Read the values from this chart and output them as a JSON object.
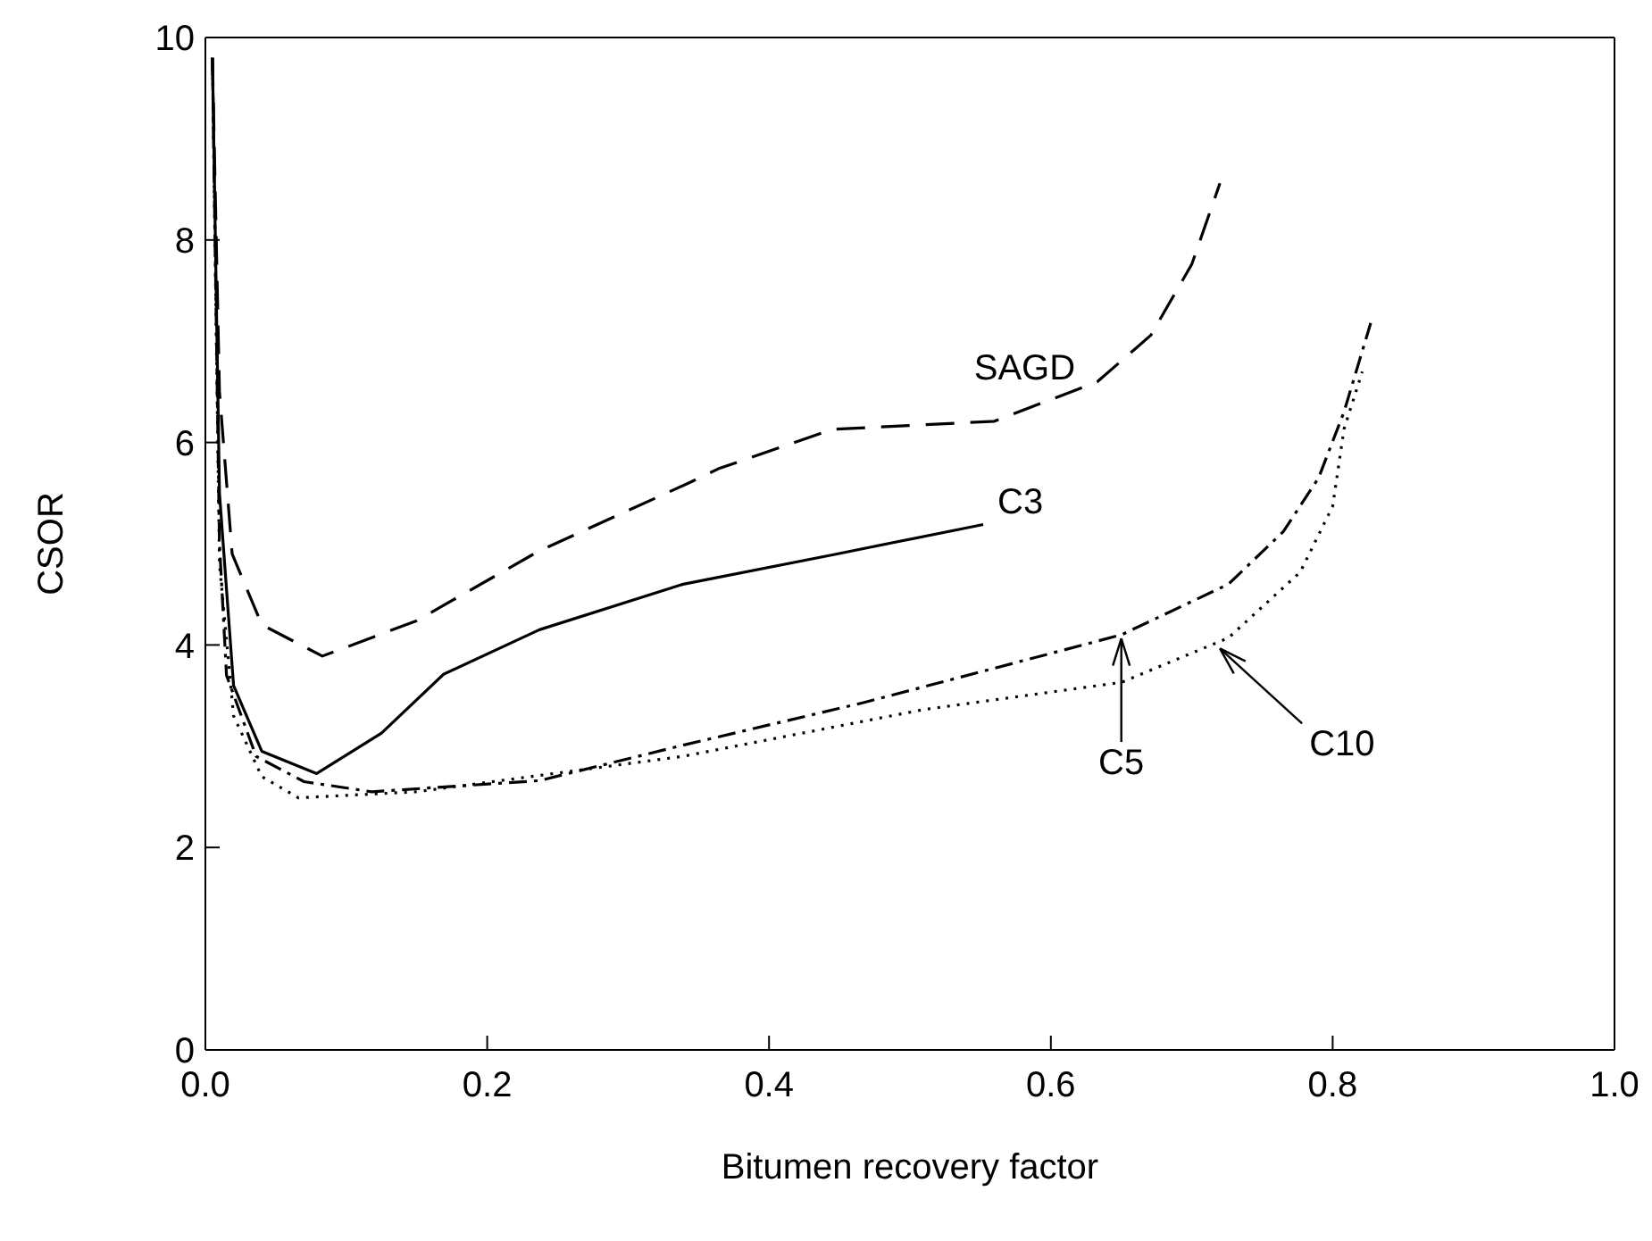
{
  "chart_data": {
    "type": "line",
    "xlabel": "Bitumen recovery factor",
    "ylabel": "CSOR",
    "xlim": [
      0,
      1
    ],
    "xticks": [
      {
        "value": 0,
        "label": "0.0"
      },
      {
        "value": 0.2,
        "label": "0.2"
      },
      {
        "value": 0.4,
        "label": "0.4"
      },
      {
        "value": 0.6,
        "label": "0.6"
      },
      {
        "value": 0.8,
        "label": "0.8"
      },
      {
        "value": 1,
        "label": "1.0"
      }
    ],
    "ylim": [
      0,
      10
    ],
    "yticks": [
      0,
      2,
      4,
      6,
      8,
      10
    ],
    "grid": false,
    "legend": false,
    "marker": "none",
    "series": [
      {
        "color": "#000000",
        "line_style": "dashed",
        "x": [
          0.005,
          0.01,
          0.019,
          0.04,
          0.083,
          0.15,
          0.237,
          0.343,
          0.364,
          0.445,
          0.56,
          0.633,
          0.671,
          0.7,
          0.72
        ],
        "values": [
          9.8,
          6.5,
          4.9,
          4.2,
          3.89,
          4.24,
          4.93,
          5.6,
          5.74,
          6.13,
          6.21,
          6.6,
          7.06,
          7.76,
          8.56
        ]
      },
      {
        "color": "#000000",
        "line_style": "solid",
        "x": [
          0.005,
          0.01,
          0.02,
          0.04,
          0.079,
          0.125,
          0.169,
          0.237,
          0.339,
          0.445,
          0.552
        ],
        "values": [
          9.8,
          5.5,
          3.6,
          2.95,
          2.73,
          3.13,
          3.71,
          4.15,
          4.6,
          4.89,
          5.19
        ]
      },
      {
        "color": "#000000",
        "line_style": "dashdot",
        "x": [
          0.005,
          0.01,
          0.015,
          0.036,
          0.07,
          0.118,
          0.237,
          0.339,
          0.467,
          0.65,
          0.726,
          0.765,
          0.79,
          0.808,
          0.827
        ],
        "values": [
          9.8,
          5.0,
          3.7,
          2.9,
          2.65,
          2.55,
          2.66,
          3.01,
          3.43,
          4.1,
          4.6,
          5.12,
          5.65,
          6.3,
          7.18
        ]
      },
      {
        "color": "#000000",
        "line_style": "dotted",
        "x": [
          0.005,
          0.01,
          0.02,
          0.04,
          0.066,
          0.15,
          0.339,
          0.509,
          0.65,
          0.726,
          0.777,
          0.8,
          0.808,
          0.821
        ],
        "values": [
          9.8,
          4.8,
          3.3,
          2.7,
          2.49,
          2.55,
          2.9,
          3.36,
          3.63,
          4.07,
          4.72,
          5.37,
          6.13,
          6.7
        ]
      }
    ],
    "annotations": [
      {
        "text": "SAGD",
        "x": 0.63,
        "y": 6.55
      },
      {
        "text": "C3",
        "x": 0.552,
        "y": 5.19
      },
      {
        "text": "C5",
        "x": 0.65,
        "y": 4.1
      },
      {
        "text": "C10",
        "x": 0.72,
        "y": 4.0
      }
    ]
  }
}
